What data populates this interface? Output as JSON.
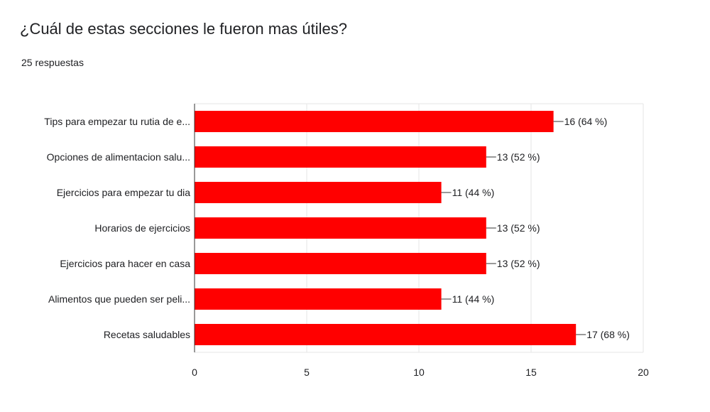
{
  "question": {
    "title": "¿Cuál de estas secciones le fueron mas útiles?",
    "responses": "25 respuestas"
  },
  "colors": {
    "bar": "#ff0000",
    "grid": "#e6e6e6",
    "text": "#202124",
    "axis": "#333333"
  },
  "chart_data": {
    "type": "bar",
    "orientation": "horizontal",
    "categories": [
      "Tips para empezar tu rutia de e...",
      "Opciones de alimentacion salu...",
      "Ejercicios para empezar tu dia",
      "Horarios de ejercicios",
      "Ejercicios para hacer en casa",
      "Alimentos que pueden ser peli...",
      "Recetas saludables"
    ],
    "values": [
      16,
      13,
      11,
      13,
      13,
      11,
      17
    ],
    "data_labels": [
      "16 (64 %)",
      "13 (52 %)",
      "11 (44 %)",
      "13 (52 %)",
      "13 (52 %)",
      "11 (44 %)",
      "17 (68 %)"
    ],
    "xlim": [
      0,
      20
    ],
    "xticks": [
      0,
      5,
      10,
      15,
      20
    ],
    "grid": true,
    "legend": "none"
  }
}
